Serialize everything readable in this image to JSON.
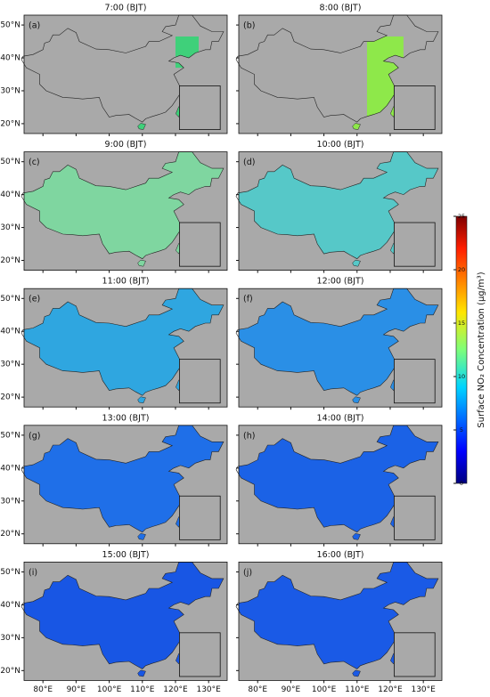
{
  "panels": [
    {
      "title": "7:00 (BJT)",
      "label": "(a)",
      "color": "#3fd07a"
    },
    {
      "title": "8:00 (BJT)",
      "label": "(b)",
      "color": "#8ee84a"
    },
    {
      "title": "9:00 (BJT)",
      "label": "(c)",
      "color": "#7fd6a0"
    },
    {
      "title": "10:00 (BJT)",
      "label": "(d)",
      "color": "#56c8c8"
    },
    {
      "title": "11:00 (BJT)",
      "label": "(e)",
      "color": "#2fa6e0"
    },
    {
      "title": "12:00 (BJT)",
      "label": "(f)",
      "color": "#2a8fe6"
    },
    {
      "title": "13:00 (BJT)",
      "label": "(g)",
      "color": "#1f6fe8"
    },
    {
      "title": "14:00 (BJT)",
      "label": "(h)",
      "color": "#1b62e6"
    },
    {
      "title": "15:00 (BJT)",
      "label": "(i)",
      "color": "#1856e4"
    },
    {
      "title": "16:00 (BJT)",
      "label": "(j)",
      "color": "#1a5ae6"
    }
  ],
  "lat_ticks": [
    {
      "value": 50,
      "label": "50°N"
    },
    {
      "value": 40,
      "label": "40°N"
    },
    {
      "value": 30,
      "label": "30°N"
    },
    {
      "value": 20,
      "label": "20°N"
    }
  ],
  "lon_ticks": [
    {
      "value": 80,
      "label": "80°E"
    },
    {
      "value": 90,
      "label": "90°E"
    },
    {
      "value": 100,
      "label": "100°E"
    },
    {
      "value": 110,
      "label": "110°E"
    },
    {
      "value": 120,
      "label": "120°E"
    },
    {
      "value": 130,
      "label": "130°E"
    }
  ],
  "lat_range": [
    17,
    53
  ],
  "lon_range": [
    74.3,
    135.6
  ],
  "colorbar": {
    "label": "Surface NO₂ Concentration (μg/m³)",
    "range": [
      0,
      25
    ],
    "ticks": [
      0,
      5,
      10,
      15,
      20,
      25
    ]
  }
}
